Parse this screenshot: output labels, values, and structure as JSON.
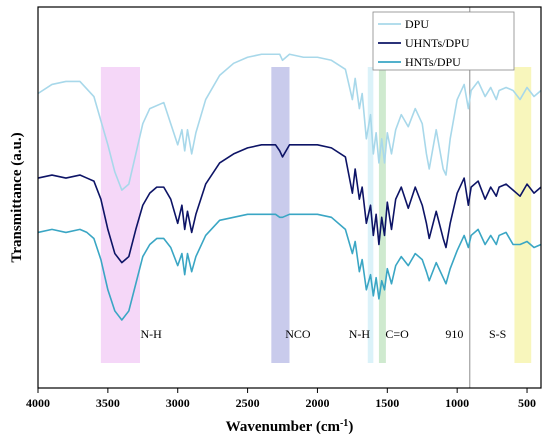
{
  "chart_data": {
    "type": "line",
    "title": "",
    "xlabel": "Wavenumber (cm",
    "xlabel_sup": "-1",
    "xlabel_suffix": ")",
    "ylabel": "Transmittance  (a.u.)",
    "xlim": [
      4000,
      400
    ],
    "x_reversed": true,
    "y_ticks_shown": false,
    "grid": false,
    "legend_position": "top-right",
    "x_ticks": [
      4000,
      3500,
      3000,
      2500,
      2000,
      1500,
      1000,
      500
    ],
    "x_tick_labels": [
      "4000",
      "3500",
      "3000",
      "2500",
      "2000",
      "1500",
      "1000",
      "500"
    ],
    "series": [
      {
        "name": "DPU",
        "color": "#a8d8ea",
        "x": [
          4000,
          3900,
          3800,
          3700,
          3600,
          3500,
          3450,
          3400,
          3350,
          3300,
          3250,
          3200,
          3100,
          3050,
          3000,
          2970,
          2950,
          2930,
          2900,
          2870,
          2800,
          2700,
          2600,
          2500,
          2400,
          2300,
          2270,
          2250,
          2200,
          2100,
          2000,
          1900,
          1800,
          1750,
          1730,
          1700,
          1680,
          1650,
          1620,
          1600,
          1580,
          1560,
          1540,
          1520,
          1500,
          1470,
          1440,
          1400,
          1350,
          1300,
          1250,
          1220,
          1200,
          1150,
          1100,
          1080,
          1050,
          1000,
          950,
          920,
          900,
          850,
          800,
          760,
          720,
          700,
          650,
          600,
          550,
          500,
          450,
          400
        ],
        "y": [
          0.75,
          0.78,
          0.79,
          0.79,
          0.74,
          0.58,
          0.49,
          0.43,
          0.45,
          0.55,
          0.65,
          0.7,
          0.72,
          0.65,
          0.58,
          0.63,
          0.56,
          0.63,
          0.55,
          0.62,
          0.73,
          0.81,
          0.85,
          0.87,
          0.88,
          0.88,
          0.88,
          0.86,
          0.88,
          0.87,
          0.87,
          0.86,
          0.83,
          0.73,
          0.8,
          0.7,
          0.75,
          0.6,
          0.68,
          0.55,
          0.62,
          0.52,
          0.6,
          0.52,
          0.62,
          0.55,
          0.63,
          0.68,
          0.64,
          0.7,
          0.65,
          0.55,
          0.5,
          0.63,
          0.5,
          0.48,
          0.6,
          0.73,
          0.78,
          0.7,
          0.76,
          0.79,
          0.74,
          0.77,
          0.73,
          0.76,
          0.77,
          0.76,
          0.73,
          0.77,
          0.74,
          0.76
        ]
      },
      {
        "name": "UHNTs/DPU",
        "color": "#0d1466",
        "x": [
          4000,
          3900,
          3800,
          3700,
          3650,
          3600,
          3550,
          3500,
          3450,
          3400,
          3350,
          3300,
          3250,
          3200,
          3150,
          3100,
          3050,
          3000,
          2970,
          2950,
          2930,
          2900,
          2870,
          2800,
          2700,
          2600,
          2500,
          2400,
          2300,
          2270,
          2250,
          2200,
          2100,
          2000,
          1900,
          1800,
          1750,
          1730,
          1700,
          1680,
          1650,
          1620,
          1600,
          1580,
          1560,
          1540,
          1520,
          1500,
          1470,
          1440,
          1400,
          1350,
          1300,
          1250,
          1220,
          1200,
          1150,
          1100,
          1080,
          1050,
          1000,
          950,
          920,
          900,
          850,
          800,
          760,
          720,
          700,
          650,
          600,
          550,
          500,
          450,
          400
        ],
        "y": [
          0.47,
          0.48,
          0.47,
          0.48,
          0.47,
          0.46,
          0.4,
          0.3,
          0.22,
          0.19,
          0.21,
          0.3,
          0.38,
          0.42,
          0.44,
          0.44,
          0.4,
          0.32,
          0.38,
          0.3,
          0.36,
          0.29,
          0.35,
          0.45,
          0.52,
          0.55,
          0.57,
          0.58,
          0.58,
          0.56,
          0.54,
          0.58,
          0.58,
          0.58,
          0.57,
          0.54,
          0.42,
          0.5,
          0.4,
          0.44,
          0.32,
          0.38,
          0.28,
          0.35,
          0.25,
          0.34,
          0.28,
          0.39,
          0.3,
          0.4,
          0.44,
          0.37,
          0.44,
          0.38,
          0.32,
          0.27,
          0.36,
          0.27,
          0.24,
          0.32,
          0.42,
          0.47,
          0.38,
          0.44,
          0.46,
          0.4,
          0.44,
          0.41,
          0.44,
          0.45,
          0.43,
          0.41,
          0.45,
          0.42,
          0.44
        ]
      },
      {
        "name": "HNTs/DPU",
        "color": "#3aa6c4",
        "x": [
          4000,
          3900,
          3800,
          3700,
          3650,
          3600,
          3550,
          3500,
          3450,
          3400,
          3350,
          3300,
          3250,
          3200,
          3150,
          3100,
          3050,
          3000,
          2970,
          2950,
          2930,
          2900,
          2870,
          2800,
          2700,
          2600,
          2500,
          2400,
          2300,
          2270,
          2250,
          2200,
          2100,
          2000,
          1900,
          1800,
          1750,
          1730,
          1700,
          1680,
          1650,
          1620,
          1600,
          1580,
          1560,
          1540,
          1520,
          1500,
          1470,
          1440,
          1400,
          1350,
          1300,
          1250,
          1220,
          1200,
          1150,
          1100,
          1080,
          1050,
          1000,
          950,
          920,
          900,
          850,
          800,
          760,
          720,
          700,
          650,
          600,
          550,
          500,
          450,
          400
        ],
        "y": [
          0.29,
          0.3,
          0.29,
          0.3,
          0.29,
          0.27,
          0.2,
          0.1,
          0.03,
          0.0,
          0.03,
          0.12,
          0.21,
          0.25,
          0.27,
          0.27,
          0.24,
          0.18,
          0.22,
          0.15,
          0.22,
          0.16,
          0.21,
          0.28,
          0.33,
          0.34,
          0.35,
          0.35,
          0.35,
          0.34,
          0.34,
          0.35,
          0.35,
          0.35,
          0.34,
          0.3,
          0.22,
          0.26,
          0.16,
          0.2,
          0.1,
          0.15,
          0.08,
          0.14,
          0.07,
          0.13,
          0.1,
          0.17,
          0.12,
          0.18,
          0.21,
          0.18,
          0.22,
          0.2,
          0.16,
          0.13,
          0.19,
          0.14,
          0.12,
          0.17,
          0.23,
          0.28,
          0.24,
          0.28,
          0.3,
          0.25,
          0.28,
          0.25,
          0.28,
          0.29,
          0.25,
          0.25,
          0.26,
          0.24,
          0.25
        ]
      }
    ],
    "bands": [
      {
        "from": 3550,
        "to": 3270,
        "color": "#f1c9f5"
      },
      {
        "from": 2330,
        "to": 2200,
        "color": "#b7b9e6"
      },
      {
        "from": 1640,
        "to": 1600,
        "color": "#cfeef7"
      },
      {
        "from": 1560,
        "to": 1510,
        "color": "#bfe3bf"
      },
      {
        "from": 590,
        "to": 470,
        "color": "#f6f3a6"
      }
    ],
    "vline": {
      "x": 910,
      "color": "#a0a0a0"
    },
    "annotations": [
      {
        "text": "N-H",
        "x": 3190
      },
      {
        "text": "NCO",
        "x": 2140
      },
      {
        "text": "N-H",
        "x": 1700
      },
      {
        "text": "C=O",
        "x": 1430
      },
      {
        "text": "910",
        "x": 1020
      },
      {
        "text": "S-S",
        "x": 710
      }
    ]
  }
}
